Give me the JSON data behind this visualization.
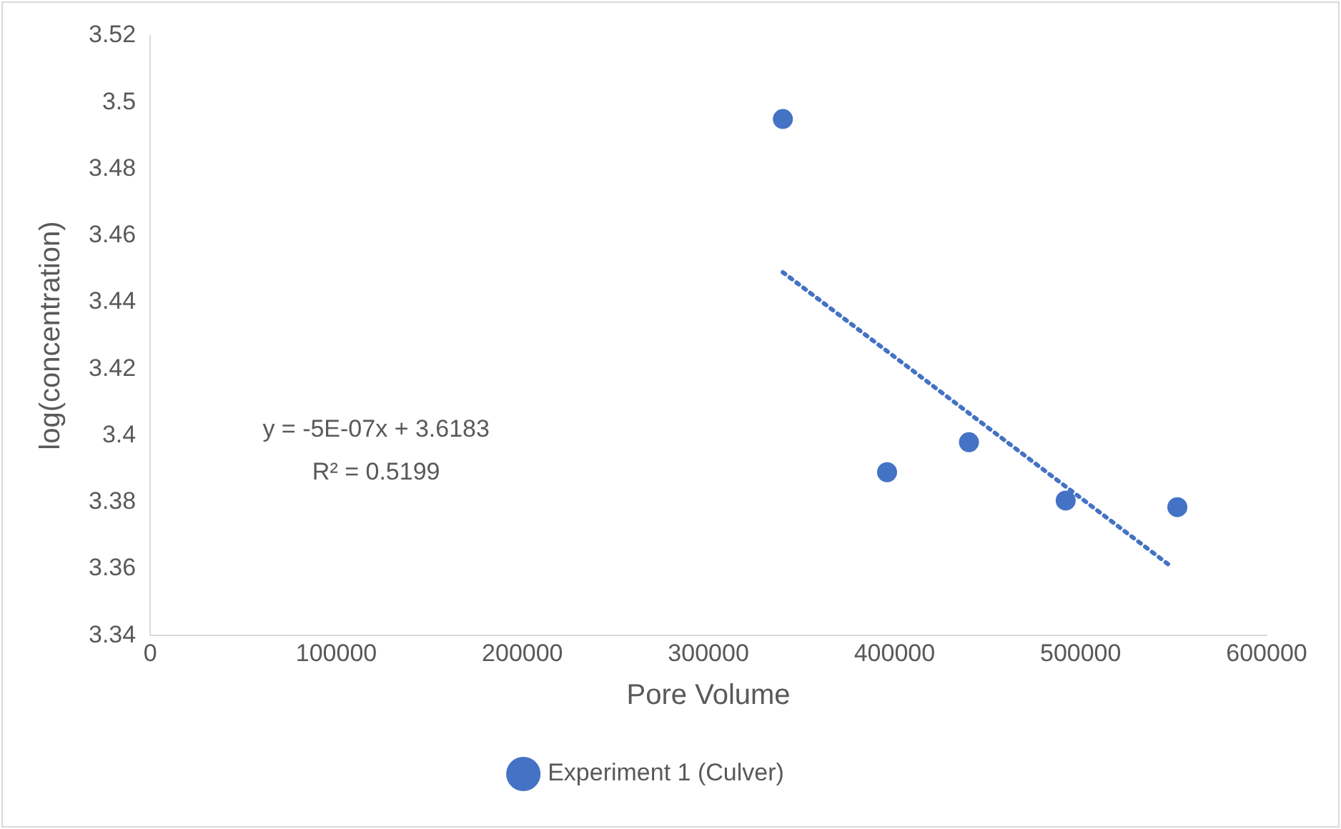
{
  "chart_data": {
    "type": "scatter",
    "xlabel": "Pore Volume",
    "ylabel": "log(concentration)",
    "xlim": [
      0,
      600000
    ],
    "xticks": [
      0,
      100000,
      200000,
      300000,
      400000,
      500000,
      600000
    ],
    "ylim": [
      3.34,
      3.52
    ],
    "yticks": [
      3.34,
      3.36,
      3.38,
      3.4,
      3.42,
      3.44,
      3.46,
      3.48,
      3.5,
      3.52
    ],
    "grid": false,
    "legend": "bottom",
    "marker": "circle",
    "series": [
      {
        "name": "Experiment 1 (Culver)",
        "color": "#4472c4",
        "x": [
          340000,
          396000,
          440000,
          492000,
          552000
        ],
        "values": [
          3.495,
          3.389,
          3.398,
          3.3805,
          3.3785
        ]
      },
      {
        "type": "line",
        "color": "#4472c4",
        "line_style": "dotted",
        "marker": "none",
        "x": [
          340000,
          548000
        ],
        "values": [
          3.449,
          3.361
        ]
      }
    ],
    "annotations": [
      "y = -5E-07x + 3.6183",
      "R² = 0.5199"
    ]
  }
}
